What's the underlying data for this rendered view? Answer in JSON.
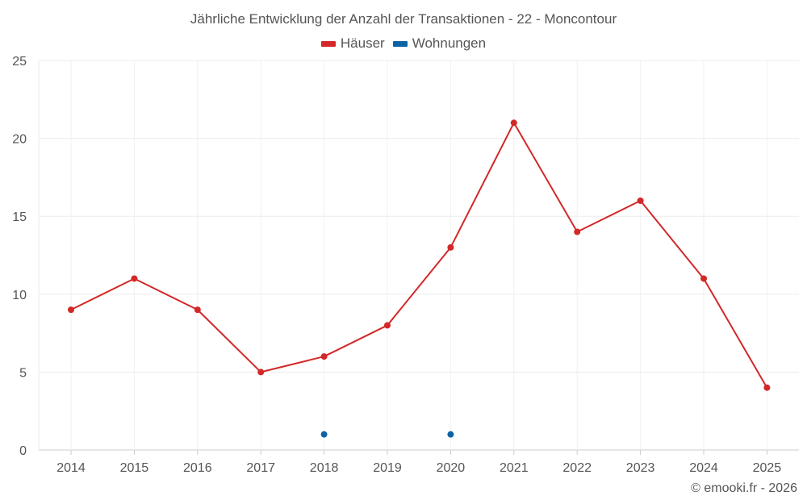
{
  "chart_data": {
    "type": "line",
    "title": "Jährliche Entwicklung der Anzahl der Transaktionen - 22 - Moncontour",
    "categories": [
      "2014",
      "2015",
      "2016",
      "2017",
      "2018",
      "2019",
      "2020",
      "2021",
      "2022",
      "2023",
      "2024",
      "2025"
    ],
    "ylim": [
      0,
      25
    ],
    "yticks": [
      "0",
      "5",
      "10",
      "15",
      "20",
      "25"
    ],
    "grid": true,
    "legend_position": "top",
    "series": [
      {
        "name": "Häuser",
        "color": "#d32828",
        "values": [
          9,
          11,
          9,
          5,
          6,
          8,
          13,
          21,
          14,
          16,
          11,
          4
        ]
      },
      {
        "name": "Wohnungen",
        "color": "#0b63a4",
        "values": [
          null,
          null,
          null,
          null,
          1,
          null,
          1,
          null,
          null,
          null,
          null,
          null
        ]
      }
    ]
  },
  "footer": {
    "credit": "© emooki.fr - 2026"
  }
}
